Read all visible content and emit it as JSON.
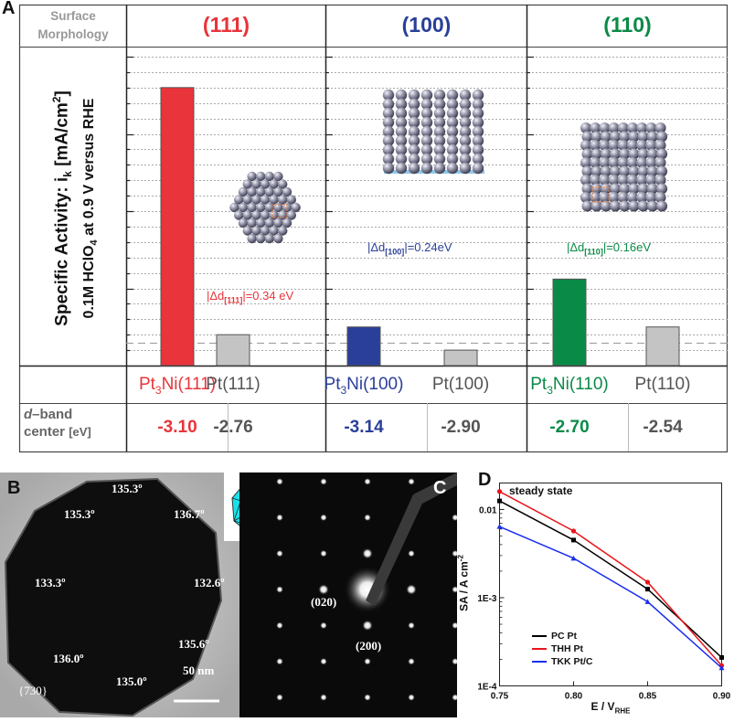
{
  "panel_labels": {
    "a": "A",
    "b": "B",
    "c": "C",
    "d": "D"
  },
  "colors": {
    "red": "#e8343a",
    "blue": "#2a3f99",
    "green": "#0a8a47",
    "gray": "#c4c4c4",
    "cyan": "#18e2ea"
  },
  "panel_a": {
    "header_label_line1": "Surface",
    "header_label_line2": "Morphology",
    "facets": [
      "(111)",
      "(100)",
      "(110)"
    ],
    "ylabel_line1": "Specific Activity: i",
    "ylabel_sub": "k",
    "ylabel_rest": " [mA/cm",
    "ylabel_sup": "2",
    "ylabel_end": "]",
    "ylabel_line2": "0.1M HClO",
    "ylabel_line2_sub": "4",
    "ylabel_line2_end": " at 0.9 V versus RHE",
    "dband_label_line1": "d",
    "dband_label_line1b": "–band",
    "dband_label_line2": "center",
    "dband_unit": "[eV]",
    "annotations": [
      {
        "pre": "|Δd",
        "sub": "[111]",
        "post": "|=0.34 eV"
      },
      {
        "pre": "|Δd",
        "sub": "[100]",
        "post": "|=0.24eV"
      },
      {
        "pre": "|Δd",
        "sub": "[110]",
        "post": "|=0.16eV"
      }
    ]
  },
  "chart_data": [
    {
      "type": "bar",
      "title": "Surface Morphology",
      "ylabel": "Specific Activity: ik [mA/cm2] 0.1M HClO4 at 0.9 V versus RHE",
      "categories": [
        "Pt3Ni(111)",
        "Pt(111)",
        "Pt3Ni(100)",
        "Pt(100)",
        "Pt3Ni(110)",
        "Pt(110)"
      ],
      "category_labels": [
        {
          "pre": "Pt",
          "sub": "3",
          "post": "Ni(111)"
        },
        {
          "pre": "Pt(111)",
          "sub": "",
          "post": ""
        },
        {
          "pre": "Pt",
          "sub": "3",
          "post": "Ni(100)"
        },
        {
          "pre": "Pt(100)",
          "sub": "",
          "post": ""
        },
        {
          "pre": "Pt",
          "sub": "3",
          "post": "Ni(110)"
        },
        {
          "pre": "Pt(110)",
          "sub": "",
          "post": ""
        }
      ],
      "values": [
        18.0,
        2.0,
        2.5,
        1.0,
        5.6,
        2.5
      ],
      "bar_colors": [
        "#e8343a",
        "#c4c4c4",
        "#2a3f99",
        "#c4c4c4",
        "#0a8a47",
        "#c4c4c4"
      ],
      "label_colors": [
        "#e8343a",
        "#555555",
        "#2a3f99",
        "#555555",
        "#0a8a47",
        "#555555"
      ],
      "ylim": [
        0,
        20
      ],
      "dband_center": [
        "-3.10",
        "-2.76",
        "-3.14",
        "-2.90",
        "-2.70",
        "-2.54"
      ]
    },
    {
      "type": "line",
      "title": "steady state",
      "xlabel": "E / V",
      "xlabel_sub": "RHE",
      "ylabel": "SA / A cm",
      "ylabel_sup": "-2",
      "xlim": [
        0.75,
        0.9
      ],
      "ylim_log10": [
        -4,
        -1.7
      ],
      "x_ticks": [
        "0.75",
        "0.80",
        "0.85",
        "0.90"
      ],
      "y_ticks": [
        "0.01",
        "1E-3",
        "1E-4"
      ],
      "y_tick_values": [
        0.01,
        0.001,
        0.0001
      ],
      "x": [
        0.75,
        0.8,
        0.85,
        0.9
      ],
      "series": [
        {
          "name": "PC Pt",
          "values": [
            0.0125,
            0.0045,
            0.00125,
            0.00021
          ],
          "color": "#000000",
          "marker": "square"
        },
        {
          "name": "THH Pt",
          "values": [
            0.016,
            0.0057,
            0.0015,
            0.00017
          ],
          "color": "#e8151b",
          "marker": "circle"
        },
        {
          "name": "TKK Pt/C",
          "values": [
            0.0064,
            0.0028,
            0.0009,
            0.00016
          ],
          "color": "#1a2ef0",
          "marker": "triangle"
        }
      ]
    }
  ],
  "panel_b": {
    "angles": [
      "135.3º",
      "135.3º",
      "136.7º",
      "133.3º",
      "132.6º",
      "136.0º",
      "135.6º",
      "135.0º"
    ],
    "facet_label": "{730}",
    "scale_label": "50 nm"
  },
  "panel_c": {
    "spots": [
      "(020)",
      "(200)"
    ]
  }
}
